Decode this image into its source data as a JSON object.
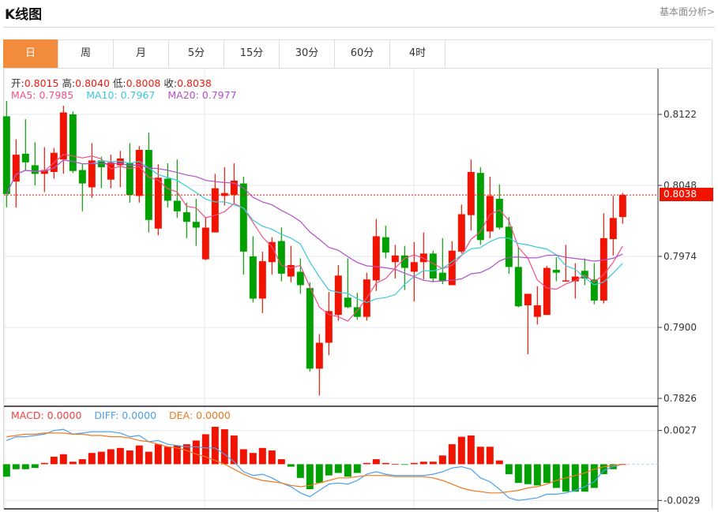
{
  "header": {
    "title": "K线图",
    "link": "基本面分析>"
  },
  "tabs": [
    {
      "label": "日",
      "active": true
    },
    {
      "label": "周"
    },
    {
      "label": "月"
    },
    {
      "label": "5分"
    },
    {
      "label": "15分"
    },
    {
      "label": "30分"
    },
    {
      "label": "60分"
    },
    {
      "label": "4时"
    }
  ],
  "legend": {
    "open_label": "开:",
    "open": "0.8015",
    "high_label": "高:",
    "high": "0.8040",
    "low_label": "低:",
    "low": "0.8008",
    "close_label": "收:",
    "close": "0.8038",
    "ma5": "MA5: 0.7985",
    "ma10": "MA10: 0.7967",
    "ma20": "MA20: 0.7977"
  },
  "macd_legend": {
    "macd": "MACD: 0.0000",
    "diff": "DIFF: 0.0000",
    "dea": "DEA: 0.0000"
  },
  "colors": {
    "up": "#f01400",
    "down": "#00a000",
    "ma5": "#f0508a",
    "ma10": "#3cc8dc",
    "ma20": "#b450c8",
    "diff": "#4ca0f0",
    "dea": "#f07820",
    "accent": "#f28c3c"
  },
  "chart_data": [
    {
      "type": "candlestick",
      "title": "K线图",
      "y_ticks": [
        "0.8122",
        "0.8048",
        "0.7974",
        "0.7900",
        "0.7826"
      ],
      "ylim": [
        0.7826,
        0.8122
      ],
      "current_price": "0.8038",
      "ohlc": [
        [
          0.812,
          0.8136,
          0.8025,
          0.8039
        ],
        [
          0.8052,
          0.8096,
          0.8025,
          0.808
        ],
        [
          0.8081,
          0.8117,
          0.8064,
          0.8072
        ],
        [
          0.8069,
          0.8093,
          0.8048,
          0.806
        ],
        [
          0.806,
          0.8088,
          0.8041,
          0.8064
        ],
        [
          0.8062,
          0.8087,
          0.8055,
          0.8082
        ],
        [
          0.8075,
          0.8131,
          0.806,
          0.8124
        ],
        [
          0.8122,
          0.8125,
          0.8061,
          0.8063
        ],
        [
          0.8064,
          0.807,
          0.8021,
          0.805
        ],
        [
          0.8046,
          0.8092,
          0.8035,
          0.8074
        ],
        [
          0.8074,
          0.8078,
          0.8045,
          0.8067
        ],
        [
          0.8054,
          0.808,
          0.8045,
          0.8072
        ],
        [
          0.8069,
          0.8084,
          0.8046,
          0.8076
        ],
        [
          0.8071,
          0.8092,
          0.803,
          0.8038
        ],
        [
          0.8037,
          0.8089,
          0.803,
          0.8085
        ],
        [
          0.8085,
          0.8103,
          0.7999,
          0.8012
        ],
        [
          0.8003,
          0.807,
          0.7996,
          0.8056
        ],
        [
          0.8055,
          0.8071,
          0.8025,
          0.8032
        ],
        [
          0.8032,
          0.8075,
          0.8014,
          0.8021
        ],
        [
          0.802,
          0.803,
          0.7993,
          0.801
        ],
        [
          0.801,
          0.8034,
          0.7985,
          0.8004
        ],
        [
          0.7971,
          0.8015,
          0.797,
          0.8004
        ],
        [
          0.7999,
          0.806,
          0.7999,
          0.8045
        ],
        [
          0.8037,
          0.8067,
          0.8027,
          0.804
        ],
        [
          0.8038,
          0.8071,
          0.8029,
          0.8053
        ],
        [
          0.805,
          0.8057,
          0.7955,
          0.7979
        ],
        [
          0.7974,
          0.7995,
          0.7926,
          0.793
        ],
        [
          0.793,
          0.7979,
          0.7915,
          0.7969
        ],
        [
          0.7968,
          0.7994,
          0.7955,
          0.7989
        ],
        [
          0.799,
          0.8004,
          0.7948,
          0.7956
        ],
        [
          0.7953,
          0.7985,
          0.7947,
          0.7965
        ],
        [
          0.7958,
          0.7972,
          0.7935,
          0.7944
        ],
        [
          0.7941,
          0.7947,
          0.7854,
          0.7857
        ],
        [
          0.7857,
          0.7893,
          0.7829,
          0.7884
        ],
        [
          0.7884,
          0.7937,
          0.7871,
          0.7917
        ],
        [
          0.7913,
          0.7965,
          0.7907,
          0.7954
        ],
        [
          0.7931,
          0.7972,
          0.792,
          0.7921
        ],
        [
          0.7921,
          0.7936,
          0.7908,
          0.7911
        ],
        [
          0.7911,
          0.7957,
          0.7907,
          0.795
        ],
        [
          0.7949,
          0.8013,
          0.7938,
          0.7995
        ],
        [
          0.7994,
          0.8006,
          0.7972,
          0.7978
        ],
        [
          0.7968,
          0.7986,
          0.7951,
          0.7975
        ],
        [
          0.7975,
          0.7985,
          0.7939,
          0.7962
        ],
        [
          0.7958,
          0.7989,
          0.7927,
          0.7968
        ],
        [
          0.7968,
          0.7999,
          0.795,
          0.7977
        ],
        [
          0.7977,
          0.798,
          0.7947,
          0.7951
        ],
        [
          0.7957,
          0.7993,
          0.7945,
          0.7948
        ],
        [
          0.7944,
          0.799,
          0.7944,
          0.798
        ],
        [
          0.7979,
          0.8028,
          0.7977,
          0.8018
        ],
        [
          0.8017,
          0.8075,
          0.8001,
          0.8062
        ],
        [
          0.8061,
          0.8067,
          0.7986,
          0.7991
        ],
        [
          0.8,
          0.8057,
          0.7993,
          0.8037
        ],
        [
          0.8034,
          0.8049,
          0.8002,
          0.8004
        ],
        [
          0.8005,
          0.8015,
          0.7956,
          0.7963
        ],
        [
          0.7963,
          0.7984,
          0.7921,
          0.7922
        ],
        [
          0.7923,
          0.7935,
          0.7872,
          0.7935
        ],
        [
          0.7911,
          0.7943,
          0.7903,
          0.7923
        ],
        [
          0.7913,
          0.7964,
          0.7913,
          0.7962
        ],
        [
          0.796,
          0.7973,
          0.7948,
          0.7957
        ],
        [
          0.7948,
          0.7986,
          0.7948,
          0.7949
        ],
        [
          0.7948,
          0.7967,
          0.793,
          0.7953
        ],
        [
          0.7959,
          0.7972,
          0.7944,
          0.7951
        ],
        [
          0.795,
          0.7967,
          0.7924,
          0.7928
        ],
        [
          0.7928,
          0.8019,
          0.7925,
          0.7993
        ],
        [
          0.7992,
          0.8037,
          0.7975,
          0.8014
        ],
        [
          0.8015,
          0.804,
          0.8008,
          0.8038
        ]
      ],
      "ma_periods": [
        5,
        10,
        20
      ]
    },
    {
      "type": "bar+line",
      "title": "MACD",
      "y_ticks": [
        "0.0027",
        "-0.0029"
      ],
      "ylim": [
        -0.0029,
        0.0027
      ],
      "macd": [
        -0.001,
        -0.0004,
        -0.0004,
        -0.0003,
        0.0001,
        0.0006,
        0.0008,
        0.0002,
        0.0004,
        0.0009,
        0.001,
        0.0012,
        0.0013,
        0.0011,
        0.0015,
        0.001,
        0.0016,
        0.0014,
        0.0015,
        0.0016,
        0.0019,
        0.0024,
        0.003,
        0.0028,
        0.0023,
        0.0012,
        0.0009,
        0.0013,
        0.0011,
        0.0004,
        -0.0002,
        -0.0011,
        -0.002,
        -0.0015,
        -0.0009,
        -0.0007,
        -0.001,
        -0.0007,
        0.0001,
        0.0004,
        0.0001,
        3e-05,
        -3e-05,
        0.0001,
        0.0002,
        0.0002,
        0.0007,
        0.0016,
        0.0022,
        0.0023,
        0.0014,
        0.0014,
        0.0003,
        -0.0008,
        -0.0015,
        -0.0016,
        -0.0017,
        -0.0015,
        -0.0019,
        -0.0022,
        -0.0022,
        -0.0022,
        -0.0019,
        -0.0008,
        -0.0004,
        0.0
      ],
      "diff": [
        0.0019,
        0.0022,
        0.0022,
        0.0023,
        0.0024,
        0.0027,
        0.0028,
        0.0024,
        0.0025,
        0.0026,
        0.0026,
        0.0026,
        0.0025,
        0.0022,
        0.0023,
        0.0018,
        0.0019,
        0.0016,
        0.0015,
        0.0014,
        0.0014,
        0.0013,
        0.0013,
        0.0008,
        0.0002,
        -0.0006,
        -0.0009,
        -0.0008,
        -0.0011,
        -0.0015,
        -0.0018,
        -0.0023,
        -0.0026,
        -0.0021,
        -0.0016,
        -0.0015,
        -0.0016,
        -0.0013,
        -0.0008,
        -0.0006,
        -0.0008,
        -0.0009,
        -0.0009,
        -0.0009,
        -0.0009,
        -0.0008,
        -0.0006,
        -0.0003,
        -0.0002,
        -0.0004,
        -0.0011,
        -0.0014,
        -0.002,
        -0.0027,
        -0.0029,
        -0.0028,
        -0.0027,
        -0.0024,
        -0.0024,
        -0.0023,
        -0.0021,
        -0.0018,
        -0.0014,
        -0.0005,
        -0.0002,
        0.0
      ],
      "dea": [
        0.0022,
        0.0023,
        0.0024,
        0.0024,
        0.0025,
        0.0025,
        0.0025,
        0.0024,
        0.0024,
        0.0023,
        0.0023,
        0.0022,
        0.0022,
        0.0021,
        0.0019,
        0.0018,
        0.0016,
        0.0014,
        0.0013,
        0.0011,
        0.0008,
        0.0006,
        0.0003,
        0.0,
        -0.0004,
        -0.0008,
        -0.0011,
        -0.0013,
        -0.0014,
        -0.0015,
        -0.0017,
        -0.0018,
        -0.0017,
        -0.0015,
        -0.0013,
        -0.0011,
        -0.0011,
        -0.001,
        -0.0009,
        -0.0009,
        -0.0009,
        -0.001,
        -0.001,
        -0.001,
        -0.001,
        -0.0011,
        -0.0013,
        -0.0016,
        -0.0019,
        -0.0021,
        -0.0022,
        -0.0023,
        -0.0023,
        -0.0022,
        -0.0021,
        -0.0019,
        -0.0018,
        -0.0016,
        -0.0013,
        -0.0011,
        -0.0009,
        -0.0007,
        -0.0004,
        -0.0002,
        -0.0001,
        0.0
      ]
    }
  ]
}
